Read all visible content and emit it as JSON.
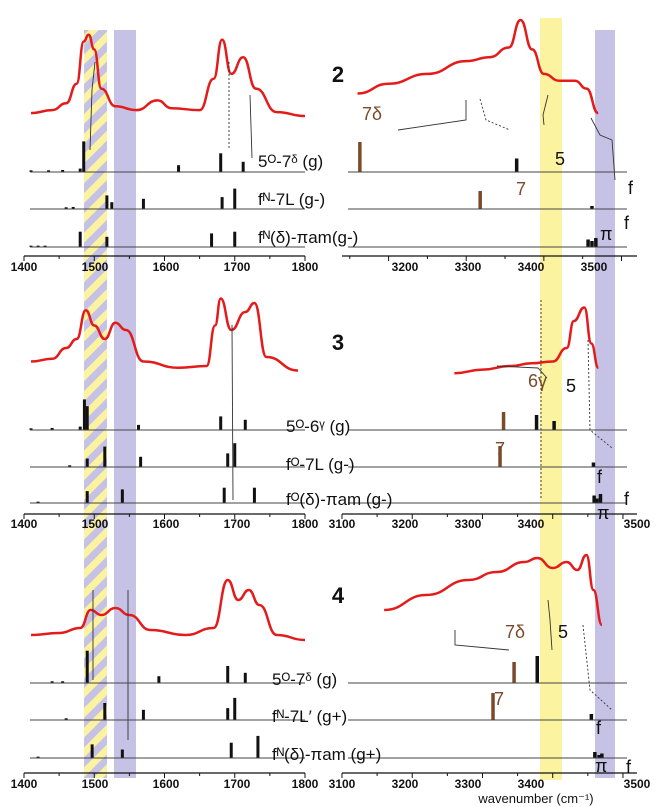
{
  "colors": {
    "spectrum": "#e31b1b",
    "yellow_band": "#fbf3a0",
    "blue_band": "#c6c2e6",
    "brown": "#7a4a2a",
    "stick": "#111111"
  },
  "x_axis_title": "wavenumber (cm⁻¹)",
  "panel_labels": [
    "2",
    "3",
    "4"
  ],
  "left_ticks": [
    "1400",
    "1500",
    "1600",
    "1700",
    "1800"
  ],
  "right_ticks_top": [
    "3200",
    "3300",
    "3400",
    "3500"
  ],
  "right_ticks": [
    "3100",
    "3200",
    "3300",
    "3400",
    "3500"
  ],
  "conformers": {
    "p2": [
      {
        "label": "5ᴼ-7ᵟ (g)"
      },
      {
        "label": "fᴺ-7L (g-)"
      },
      {
        "label": "fᴺ(δ)-πam(g-)"
      }
    ],
    "p3": [
      {
        "label": "5ᴼ-6ᵞ (g)"
      },
      {
        "label": "fᴼ-7L (g-)"
      },
      {
        "label": "fᴼ(δ)-πam (g-)"
      }
    ],
    "p4": [
      {
        "label": "5ᴼ-7ᵟ (g)"
      },
      {
        "label": "fᴺ-7L′ (g+)"
      },
      {
        "label": "fᴺ(δ)-πam (g+)"
      }
    ]
  },
  "band_labels": {
    "p2": [
      "7δ",
      "7",
      "5",
      "f",
      "π",
      "f"
    ],
    "p3": [
      "6γ",
      "5",
      "7",
      "f",
      "π",
      "f"
    ],
    "p4": [
      "7δ",
      "5",
      "7",
      "f",
      "π",
      "f"
    ]
  },
  "chart_data": [
    {
      "type": "line",
      "panel": "2 (amide I/II region)",
      "xlim": [
        1400,
        1800
      ],
      "spectrum": [
        [
          1410,
          0.05
        ],
        [
          1440,
          0.08
        ],
        [
          1460,
          0.15
        ],
        [
          1475,
          0.35
        ],
        [
          1485,
          0.78
        ],
        [
          1492,
          0.85
        ],
        [
          1500,
          0.7
        ],
        [
          1510,
          0.3
        ],
        [
          1530,
          0.12
        ],
        [
          1560,
          0.08
        ],
        [
          1590,
          0.18
        ],
        [
          1610,
          0.1
        ],
        [
          1650,
          0.08
        ],
        [
          1670,
          0.4
        ],
        [
          1682,
          0.8
        ],
        [
          1695,
          0.45
        ],
        [
          1712,
          0.62
        ],
        [
          1730,
          0.3
        ],
        [
          1760,
          0.06
        ],
        [
          1800,
          0.02
        ]
      ],
      "sticks": [
        {
          "conformer": "5ᴼ-7ᵟ (g)",
          "x": [
            1410,
            1435,
            1455,
            1480,
            1485,
            1620,
            1680,
            1712
          ],
          "y": [
            0.05,
            0.05,
            0.06,
            0.1,
            0.9,
            0.2,
            0.55,
            0.3
          ]
        },
        {
          "conformer": "fᴺ-7L (g-)",
          "x": [
            1460,
            1470,
            1518,
            1525,
            1570,
            1682,
            1700
          ],
          "y": [
            0.05,
            0.06,
            0.4,
            0.2,
            0.3,
            0.35,
            0.6
          ]
        },
        {
          "conformer": "fᴺ(δ)-πam(g-)",
          "x": [
            1410,
            1420,
            1430,
            1480,
            1518,
            1667,
            1700
          ],
          "y": [
            0.04,
            0.04,
            0.04,
            0.45,
            0.3,
            0.4,
            0.45
          ]
        }
      ]
    },
    {
      "type": "line",
      "panel": "2 (NH stretch region)",
      "xlim": [
        3150,
        3520
      ],
      "spectrum": [
        [
          3160,
          0.25
        ],
        [
          3200,
          0.35
        ],
        [
          3250,
          0.45
        ],
        [
          3300,
          0.58
        ],
        [
          3330,
          0.62
        ],
        [
          3355,
          0.72
        ],
        [
          3370,
          1.0
        ],
        [
          3385,
          0.7
        ],
        [
          3400,
          0.45
        ],
        [
          3420,
          0.38
        ],
        [
          3440,
          0.38
        ],
        [
          3455,
          0.3
        ],
        [
          3470,
          0.05
        ]
      ],
      "sticks": [
        {
          "conformer": "5ᴼ-7ᵟ (g)",
          "x": [
            3163,
            3365
          ],
          "y": [
            1.0,
            0.45
          ]
        },
        {
          "conformer": "fᴺ-7L (g-)",
          "x": [
            3318,
            3462
          ],
          "y": [
            0.6,
            0.1
          ]
        },
        {
          "conformer": "fᴺ(δ)-πam(g-)",
          "x": [
            3457,
            3462,
            3467
          ],
          "y": [
            0.25,
            0.2,
            0.3
          ]
        }
      ]
    },
    {
      "type": "line",
      "panel": "3 (amide I/II region)",
      "xlim": [
        1400,
        1800
      ],
      "spectrum": [
        [
          1410,
          0.15
        ],
        [
          1440,
          0.18
        ],
        [
          1460,
          0.3
        ],
        [
          1475,
          0.4
        ],
        [
          1488,
          0.72
        ],
        [
          1500,
          0.55
        ],
        [
          1515,
          0.4
        ],
        [
          1530,
          0.58
        ],
        [
          1545,
          0.5
        ],
        [
          1570,
          0.15
        ],
        [
          1620,
          0.08
        ],
        [
          1660,
          0.1
        ],
        [
          1672,
          0.55
        ],
        [
          1680,
          0.85
        ],
        [
          1695,
          0.5
        ],
        [
          1715,
          0.7
        ],
        [
          1728,
          0.8
        ],
        [
          1745,
          0.2
        ],
        [
          1790,
          0.05
        ]
      ],
      "sticks": [
        {
          "conformer": "5ᴼ-6ᵞ (g)",
          "x": [
            1410,
            1440,
            1480,
            1486,
            1490,
            1563,
            1680,
            1715
          ],
          "y": [
            0.05,
            0.06,
            0.1,
            0.9,
            0.7,
            0.15,
            0.4,
            0.3
          ]
        },
        {
          "conformer": "fᴼ-7L (g-)",
          "x": [
            1465,
            1490,
            1515,
            1566,
            1690,
            1700
          ],
          "y": [
            0.05,
            0.25,
            0.6,
            0.3,
            0.4,
            0.7
          ]
        },
        {
          "conformer": "fᴼ(δ)-πam (g-)",
          "x": [
            1420,
            1490,
            1540,
            1685,
            1728
          ],
          "y": [
            0.04,
            0.35,
            0.4,
            0.45,
            0.45
          ]
        }
      ]
    },
    {
      "type": "line",
      "panel": "3 (NH stretch region)",
      "xlim": [
        3100,
        3520
      ],
      "spectrum": [
        [
          3260,
          0.02
        ],
        [
          3300,
          0.06
        ],
        [
          3340,
          0.1
        ],
        [
          3370,
          0.13
        ],
        [
          3400,
          0.15
        ],
        [
          3420,
          0.3
        ],
        [
          3430,
          0.6
        ],
        [
          3445,
          0.75
        ],
        [
          3455,
          0.35
        ],
        [
          3465,
          0.08
        ]
      ],
      "sticks": [
        {
          "conformer": "5ᴼ-6ᵞ (g)",
          "x": [
            3330,
            3377,
            3402
          ],
          "y": [
            0.6,
            0.5,
            0.3
          ]
        },
        {
          "conformer": "fᴼ-7L (g-)",
          "x": [
            3325,
            3458
          ],
          "y": [
            0.7,
            0.15
          ]
        },
        {
          "conformer": "fᴼ(δ)-πam (g-)",
          "x": [
            3459,
            3463,
            3468
          ],
          "y": [
            0.25,
            0.15,
            0.3
          ]
        }
      ]
    },
    {
      "type": "line",
      "panel": "4 (amide I/II region)",
      "xlim": [
        1400,
        1800
      ],
      "spectrum": [
        [
          1410,
          0.05
        ],
        [
          1450,
          0.07
        ],
        [
          1480,
          0.12
        ],
        [
          1495,
          0.3
        ],
        [
          1510,
          0.25
        ],
        [
          1530,
          0.32
        ],
        [
          1550,
          0.25
        ],
        [
          1580,
          0.1
        ],
        [
          1630,
          0.05
        ],
        [
          1670,
          0.12
        ],
        [
          1690,
          0.6
        ],
        [
          1705,
          0.4
        ],
        [
          1720,
          0.5
        ],
        [
          1735,
          0.35
        ],
        [
          1760,
          0.05
        ],
        [
          1800,
          0.0
        ]
      ],
      "sticks": [
        {
          "conformer": "5ᴼ-7ᵟ (g)",
          "x": [
            1440,
            1455,
            1490,
            1592,
            1690,
            1715
          ],
          "y": [
            0.05,
            0.05,
            0.95,
            0.2,
            0.5,
            0.3
          ]
        },
        {
          "conformer": "fᴺ-7L′ (g+)",
          "x": [
            1460,
            1515,
            1570,
            1690,
            1700
          ],
          "y": [
            0.05,
            0.5,
            0.3,
            0.35,
            0.65
          ]
        },
        {
          "conformer": "fᴺ(δ)-πam (g+)",
          "x": [
            1420,
            1497,
            1540,
            1695,
            1733
          ],
          "y": [
            0.04,
            0.4,
            0.25,
            0.45,
            0.65
          ]
        }
      ]
    },
    {
      "type": "line",
      "panel": "4 (NH stretch region)",
      "xlim": [
        3100,
        3520
      ],
      "spectrum": [
        [
          3160,
          0.3
        ],
        [
          3220,
          0.45
        ],
        [
          3280,
          0.6
        ],
        [
          3320,
          0.68
        ],
        [
          3360,
          0.78
        ],
        [
          3378,
          0.82
        ],
        [
          3400,
          0.72
        ],
        [
          3420,
          0.78
        ],
        [
          3435,
          0.7
        ],
        [
          3448,
          0.85
        ],
        [
          3458,
          0.5
        ],
        [
          3470,
          0.15
        ]
      ],
      "sticks": [
        {
          "conformer": "5ᴼ-7ᵟ (g)",
          "x": [
            3345,
            3378
          ],
          "y": [
            0.7,
            0.9
          ]
        },
        {
          "conformer": "fᴺ-7L′ (g+)",
          "x": [
            3315,
            3455
          ],
          "y": [
            0.9,
            0.2
          ]
        },
        {
          "conformer": "fᴺ(δ)-πam (g+)",
          "x": [
            3460,
            3466,
            3470
          ],
          "y": [
            0.2,
            0.1,
            0.15
          ]
        }
      ]
    }
  ]
}
